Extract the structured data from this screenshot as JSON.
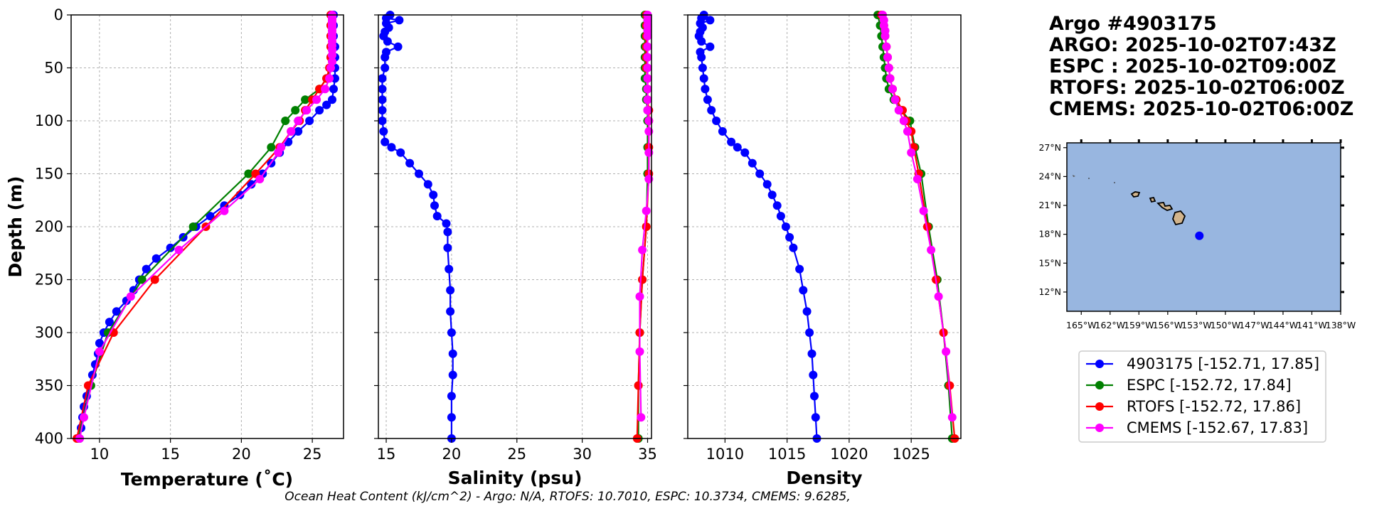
{
  "chart_data": [
    {
      "type": "line",
      "xlabel": "Temperature (˚C)",
      "ylabel": "Depth (m)",
      "xlim": [
        8,
        27.2
      ],
      "ylim": [
        400,
        0
      ],
      "xticks": [
        "10",
        "15",
        "20",
        "25"
      ],
      "xtick_values": [
        10,
        15,
        20,
        25
      ],
      "yticks": [
        "0",
        "50",
        "100",
        "150",
        "200",
        "250",
        "300",
        "350",
        "400"
      ],
      "ytick_values": [
        0,
        50,
        100,
        150,
        200,
        250,
        300,
        350,
        400
      ],
      "grid": true,
      "series": [
        {
          "name": "4903175",
          "color": "#0000ff",
          "depth": [
            0,
            10,
            20,
            30,
            40,
            50,
            60,
            70,
            80,
            85,
            90,
            100,
            110,
            120,
            130,
            140,
            150,
            160,
            170,
            180,
            190,
            200,
            210,
            220,
            230,
            240,
            250,
            260,
            270,
            280,
            290,
            300,
            310,
            320,
            330,
            340,
            350,
            360,
            370,
            380,
            390,
            400
          ],
          "values": [
            26.5,
            26.5,
            26.5,
            26.6,
            26.6,
            26.6,
            26.6,
            26.5,
            26.4,
            26.0,
            25.5,
            24.8,
            24.0,
            23.3,
            22.7,
            22.1,
            21.5,
            20.7,
            19.9,
            18.8,
            17.8,
            16.8,
            15.9,
            15.0,
            14.0,
            13.3,
            12.8,
            12.4,
            11.9,
            11.2,
            10.7,
            10.3,
            10.0,
            9.9,
            9.7,
            9.5,
            9.3,
            9.1,
            8.9,
            8.8,
            8.7,
            8.6
          ]
        },
        {
          "name": "ESPC",
          "color": "#008000",
          "depth": [
            0,
            10,
            20,
            30,
            40,
            50,
            60,
            70,
            80,
            90,
            100,
            125,
            150,
            200,
            250,
            300,
            350,
            400
          ],
          "values": [
            26.3,
            26.3,
            26.3,
            26.3,
            26.3,
            26.3,
            26.0,
            25.5,
            24.5,
            23.8,
            23.1,
            22.1,
            20.5,
            16.6,
            13.0,
            10.6,
            9.4,
            8.5
          ]
        },
        {
          "name": "RTOFS",
          "color": "#ff0000",
          "depth": [
            0,
            10,
            20,
            30,
            40,
            50,
            60,
            70,
            80,
            90,
            100,
            110,
            125,
            150,
            200,
            250,
            300,
            350,
            400
          ],
          "values": [
            26.3,
            26.3,
            26.3,
            26.3,
            26.3,
            26.2,
            26.0,
            25.5,
            25.0,
            24.5,
            24.1,
            23.5,
            22.7,
            21.0,
            17.5,
            13.9,
            11.0,
            9.2,
            8.4
          ]
        },
        {
          "name": "CMEMS",
          "color": "#ff00ff",
          "depth": [
            0,
            2,
            4,
            6,
            8,
            10,
            12,
            15,
            18,
            21,
            25,
            29,
            33,
            38,
            44,
            50,
            60,
            70,
            80,
            90,
            100,
            110,
            125,
            130,
            155,
            185,
            222,
            266,
            318,
            380,
            400
          ],
          "values": [
            26.4,
            26.4,
            26.4,
            26.4,
            26.4,
            26.4,
            26.4,
            26.4,
            26.4,
            26.4,
            26.4,
            26.4,
            26.4,
            26.4,
            26.4,
            26.3,
            26.2,
            25.9,
            25.3,
            24.6,
            24.0,
            23.5,
            22.8,
            22.6,
            21.3,
            18.8,
            15.6,
            12.2,
            10.0,
            8.9,
            8.6
          ]
        }
      ]
    },
    {
      "type": "line",
      "xlabel": "Salinity (psu)",
      "xlim": [
        14.4,
        35.3
      ],
      "ylim": [
        400,
        0
      ],
      "xticks": [
        "15",
        "20",
        "25",
        "30",
        "35"
      ],
      "xtick_values": [
        15,
        20,
        25,
        30,
        35
      ],
      "grid": true,
      "series": [
        {
          "name": "4903175",
          "color": "#0000ff",
          "depth": [
            0,
            3,
            5,
            8,
            12,
            16,
            20,
            25,
            30,
            35,
            40,
            50,
            60,
            70,
            80,
            90,
            100,
            110,
            120,
            125,
            130,
            140,
            150,
            160,
            170,
            180,
            190,
            197,
            205,
            220,
            240,
            260,
            280,
            300,
            320,
            340,
            360,
            380,
            400
          ],
          "values": [
            15.3,
            15.0,
            16.0,
            15.0,
            15.2,
            14.9,
            14.8,
            15.1,
            15.9,
            15.0,
            14.9,
            14.9,
            14.7,
            14.7,
            14.7,
            14.7,
            14.7,
            14.8,
            14.9,
            15.4,
            16.1,
            16.8,
            17.5,
            18.2,
            18.6,
            18.7,
            18.9,
            19.6,
            19.7,
            19.7,
            19.8,
            19.9,
            19.9,
            20.0,
            20.1,
            20.1,
            20.0,
            20.0,
            20.0
          ]
        },
        {
          "name": "ESPC",
          "color": "#008000",
          "depth": [
            0,
            10,
            20,
            30,
            40,
            50,
            60,
            70,
            80,
            90,
            100,
            125,
            150,
            200,
            250,
            300,
            350,
            400
          ],
          "values": [
            34.8,
            34.8,
            34.8,
            34.8,
            34.8,
            34.8,
            34.8,
            34.9,
            34.9,
            35.0,
            35.0,
            35.0,
            35.0,
            34.9,
            34.6,
            34.4,
            34.3,
            34.3
          ]
        },
        {
          "name": "RTOFS",
          "color": "#ff0000",
          "depth": [
            0,
            10,
            20,
            30,
            40,
            50,
            60,
            70,
            80,
            90,
            100,
            125,
            150,
            200,
            250,
            300,
            350,
            400
          ],
          "values": [
            34.9,
            34.9,
            34.9,
            34.9,
            34.9,
            34.9,
            35.0,
            35.0,
            35.0,
            35.1,
            35.1,
            35.1,
            35.1,
            34.9,
            34.6,
            34.4,
            34.3,
            34.2
          ]
        },
        {
          "name": "CMEMS",
          "color": "#ff00ff",
          "depth": [
            0,
            5,
            10,
            15,
            20,
            30,
            40,
            50,
            60,
            70,
            80,
            90,
            100,
            110,
            130,
            155,
            185,
            222,
            266,
            318,
            380
          ],
          "values": [
            35.0,
            35.0,
            35.0,
            35.0,
            35.0,
            35.0,
            35.0,
            35.0,
            35.0,
            35.0,
            35.0,
            35.0,
            35.1,
            35.1,
            35.1,
            35.1,
            34.9,
            34.6,
            34.4,
            34.4,
            34.5
          ]
        }
      ]
    },
    {
      "type": "line",
      "xlabel": "Density",
      "xlim": [
        1007,
        1029
      ],
      "ylim": [
        400,
        0
      ],
      "xticks": [
        "1010",
        "1015",
        "1020",
        "1025"
      ],
      "xtick_values": [
        1010,
        1015,
        1020,
        1025
      ],
      "grid": true,
      "series": [
        {
          "name": "4903175",
          "color": "#0000ff",
          "depth": [
            0,
            3,
            5,
            8,
            12,
            16,
            20,
            25,
            30,
            35,
            40,
            50,
            60,
            70,
            80,
            90,
            100,
            110,
            120,
            125,
            130,
            140,
            150,
            160,
            170,
            180,
            190,
            200,
            210,
            220,
            240,
            260,
            280,
            300,
            320,
            340,
            360,
            380,
            400
          ],
          "values": [
            1008.3,
            1008.1,
            1008.8,
            1008.0,
            1008.2,
            1008.0,
            1007.9,
            1008.1,
            1008.8,
            1008.0,
            1008.1,
            1008.2,
            1008.3,
            1008.4,
            1008.6,
            1008.9,
            1009.3,
            1009.8,
            1010.5,
            1011.0,
            1011.6,
            1012.2,
            1012.8,
            1013.4,
            1013.8,
            1014.2,
            1014.5,
            1014.9,
            1015.2,
            1015.5,
            1016.0,
            1016.3,
            1016.6,
            1016.8,
            1017.0,
            1017.1,
            1017.2,
            1017.3,
            1017.4
          ]
        },
        {
          "name": "ESPC",
          "color": "#008000",
          "depth": [
            0,
            10,
            20,
            30,
            40,
            50,
            60,
            70,
            80,
            90,
            100,
            125,
            150,
            200,
            250,
            300,
            350,
            400
          ],
          "values": [
            1022.3,
            1022.5,
            1022.6,
            1022.7,
            1022.8,
            1022.9,
            1023.0,
            1023.2,
            1023.6,
            1024.2,
            1024.9,
            1025.3,
            1025.8,
            1026.4,
            1027.1,
            1027.6,
            1028.0,
            1028.3
          ]
        },
        {
          "name": "RTOFS",
          "color": "#ff0000",
          "depth": [
            0,
            10,
            20,
            30,
            40,
            50,
            60,
            70,
            80,
            90,
            100,
            110,
            125,
            150,
            200,
            250,
            300,
            350,
            400
          ],
          "values": [
            1022.6,
            1022.8,
            1022.9,
            1023.0,
            1023.1,
            1023.2,
            1023.3,
            1023.5,
            1023.8,
            1024.3,
            1024.6,
            1025.0,
            1025.2,
            1025.6,
            1026.3,
            1027.0,
            1027.6,
            1028.1,
            1028.5
          ]
        },
        {
          "name": "CMEMS",
          "color": "#ff00ff",
          "depth": [
            0,
            5,
            10,
            15,
            20,
            30,
            40,
            50,
            60,
            70,
            80,
            90,
            100,
            110,
            130,
            155,
            185,
            222,
            266,
            318,
            380
          ],
          "values": [
            1022.7,
            1022.8,
            1022.8,
            1022.9,
            1022.9,
            1023.0,
            1023.1,
            1023.2,
            1023.3,
            1023.5,
            1023.7,
            1024.0,
            1024.4,
            1024.7,
            1025.0,
            1025.5,
            1026.0,
            1026.6,
            1027.2,
            1027.8,
            1028.3
          ]
        }
      ]
    }
  ],
  "info": {
    "lines": [
      "Argo #4903175",
      "ARGO: 2025-10-02T07:43Z",
      "ESPC : 2025-10-02T09:00Z",
      "RTOFS: 2025-10-02T06:00Z",
      "CMEMS: 2025-10-02T06:00Z"
    ]
  },
  "map": {
    "lon_range": [
      -166.5,
      -138
    ],
    "lat_range": [
      10.0,
      27.5
    ],
    "lat_ticks": [
      "27°N",
      "24°N",
      "21°N",
      "18°N",
      "15°N",
      "12°N"
    ],
    "lat_tick_values": [
      27,
      24,
      21,
      18,
      15,
      12
    ],
    "lon_ticks": [
      "165°W",
      "162°W",
      "159°W",
      "156°W",
      "153°W",
      "150°W",
      "147°W",
      "144°W",
      "141°W",
      "138°W"
    ],
    "lon_tick_values": [
      -165,
      -162,
      -159,
      -156,
      -153,
      -150,
      -147,
      -144,
      -141,
      -138
    ],
    "ocean_color": "#98b6e0",
    "land_color": "#d2b48c",
    "float_position": {
      "lon": -152.71,
      "lat": 17.85,
      "color": "#0000ff"
    }
  },
  "legend": {
    "entries": [
      {
        "label": "4903175 [-152.71, 17.85]",
        "color": "#0000ff"
      },
      {
        "label": "ESPC [-152.72, 17.84]",
        "color": "#008000"
      },
      {
        "label": "RTOFS [-152.72, 17.86]",
        "color": "#ff0000"
      },
      {
        "label": "CMEMS [-152.67, 17.83]",
        "color": "#ff00ff"
      }
    ]
  },
  "footer": {
    "text": "Ocean Heat Content (kJ/cm^2) - Argo: N/A,  RTOFS: 10.7010,  ESPC: 10.3734,  CMEMS: 9.6285,"
  }
}
